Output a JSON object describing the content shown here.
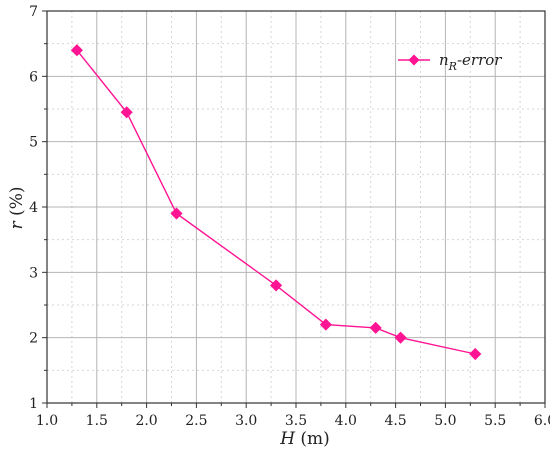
{
  "chart_data": {
    "type": "line",
    "xlabel": {
      "var": "H",
      "unit": " (m)"
    },
    "ylabel": {
      "var": "r",
      "unit": " (%)"
    },
    "xlim": [
      1.0,
      6.0
    ],
    "ylim": [
      1,
      7
    ],
    "x_ticks": [
      "1.0",
      "1.5",
      "2.0",
      "2.5",
      "3.0",
      "3.5",
      "4.0",
      "4.5",
      "5.0",
      "5.5",
      "6.0"
    ],
    "y_ticks": [
      "1",
      "2",
      "3",
      "4",
      "5",
      "6",
      "7"
    ],
    "grid": true,
    "legend_position": "top-right",
    "series": [
      {
        "name": {
          "base": "n",
          "sub": "R",
          "rest": "-error"
        },
        "color": "#ff1493",
        "marker": "diamond",
        "x": [
          1.3,
          1.8,
          2.3,
          3.3,
          3.8,
          4.3,
          4.55,
          5.3
        ],
        "y": [
          6.4,
          5.45,
          3.9,
          2.8,
          2.2,
          2.15,
          2.0,
          1.75
        ]
      }
    ]
  }
}
